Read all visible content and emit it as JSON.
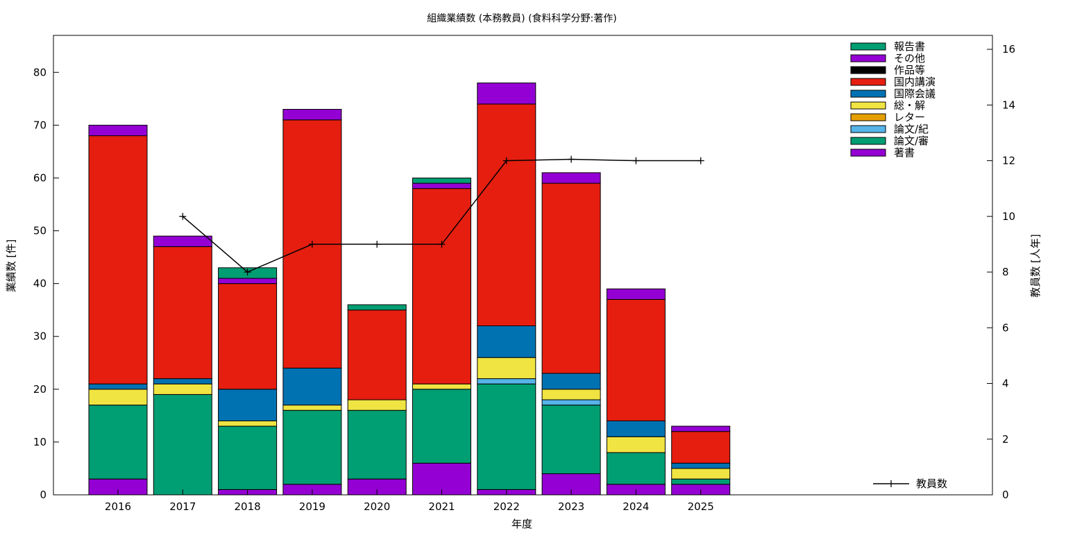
{
  "chart_data": {
    "type": "bar",
    "title": "組織業績数 (本務教員) (食料科学分野:著作)",
    "xlabel": "年度",
    "ylabel": "業績数 [件]",
    "y2label": "教員数 [人年]",
    "ylim": [
      0,
      87
    ],
    "y2lim": [
      0,
      16.5
    ],
    "yticks": [
      0,
      10,
      20,
      30,
      40,
      50,
      60,
      70,
      80
    ],
    "y2ticks": [
      0,
      2,
      4,
      6,
      8,
      10,
      12,
      14,
      16
    ],
    "stacked": true,
    "categories": [
      "2016",
      "2017",
      "2018",
      "2019",
      "2020",
      "2021",
      "2022",
      "2023",
      "2024",
      "2025"
    ],
    "series": [
      {
        "name": "著書",
        "color": "#9400d3",
        "values": [
          3,
          0,
          1,
          2,
          3,
          6,
          1,
          4,
          2,
          2
        ]
      },
      {
        "name": "論文/審",
        "color": "#009e73",
        "values": [
          14,
          19,
          12,
          14,
          13,
          14,
          20,
          13,
          6,
          1
        ]
      },
      {
        "name": "論文/紀",
        "color": "#56b4e9",
        "values": [
          0,
          0,
          0,
          0,
          0,
          0,
          1,
          1,
          0,
          0
        ]
      },
      {
        "name": "レター",
        "color": "#e69f00",
        "values": [
          0,
          0,
          0,
          0,
          0,
          0,
          0,
          0,
          0,
          0
        ]
      },
      {
        "name": "総・解",
        "color": "#f0e442",
        "values": [
          3,
          2,
          1,
          1,
          2,
          1,
          4,
          2,
          3,
          2
        ]
      },
      {
        "name": "国際会議",
        "color": "#0072b2",
        "values": [
          1,
          1,
          6,
          7,
          0,
          0,
          6,
          3,
          3,
          1
        ]
      },
      {
        "name": "国内講演",
        "color": "#e51e10",
        "values": [
          47,
          25,
          20,
          47,
          17,
          37,
          42,
          36,
          23,
          6
        ]
      },
      {
        "name": "作品等",
        "color": "#000000",
        "values": [
          0,
          0,
          0,
          0,
          0,
          0,
          0,
          0,
          0,
          0
        ]
      },
      {
        "name": "その他",
        "color": "#9400d3",
        "values": [
          2,
          2,
          1,
          2,
          0,
          1,
          4,
          2,
          2,
          1
        ]
      },
      {
        "name": "報告書",
        "color": "#009e73",
        "values": [
          0,
          0,
          2,
          0,
          1,
          1,
          0,
          0,
          0,
          0
        ]
      }
    ],
    "line_series": {
      "name": "教員数",
      "color": "#000000",
      "x": [
        "2017",
        "2018",
        "2019",
        "2020",
        "2021",
        "2022",
        "2023",
        "2024",
        "2025"
      ],
      "values": [
        10,
        8,
        9,
        9,
        9,
        12,
        12.05,
        12,
        12
      ]
    },
    "legend_position": "top-right",
    "line_legend_position": "bottom-right",
    "grid": false
  }
}
